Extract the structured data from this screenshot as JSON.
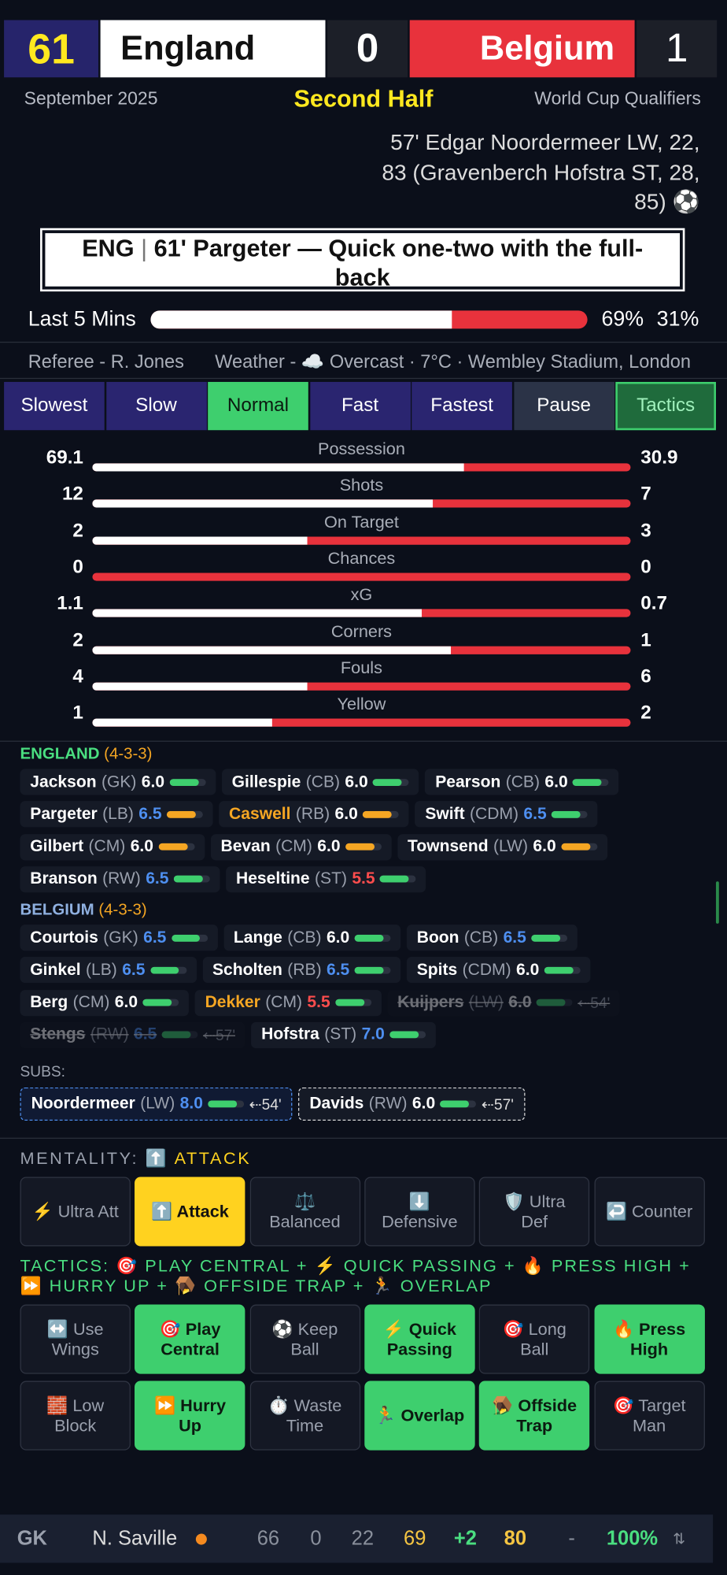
{
  "header": {
    "minute": "61",
    "home": "England",
    "home_score": "0",
    "away": "Belgium",
    "away_score": "1",
    "date": "September 2025",
    "phase": "Second Half",
    "competition": "World Cup Qualifiers"
  },
  "event": "57' Edgar Noordermeer LW, 22, 83 (Gravenberch Hofstra ST, 28, 85) ⚽",
  "commentary": {
    "team": "ENG",
    "text": "61' Pargeter — Quick one-two with the full-back"
  },
  "momentum": {
    "label": "Last 5 Mins",
    "home": 69,
    "away": 31,
    "home_label": "69%",
    "away_label": "31%"
  },
  "info": {
    "referee": "Referee - R. Jones",
    "weather": "Weather - ☁️ Overcast · 7°C · Wembley Stadium, London"
  },
  "speed": {
    "buttons": [
      "Slowest",
      "Slow",
      "Normal",
      "Fast",
      "Fastest",
      "Pause",
      "Tactics"
    ],
    "active": 2
  },
  "stats": [
    {
      "name": "Possession",
      "home": 69.1,
      "away": 30.9
    },
    {
      "name": "Shots",
      "home": 12,
      "away": 7
    },
    {
      "name": "On Target",
      "home": 2,
      "away": 3
    },
    {
      "name": "Chances",
      "home": 0,
      "away": 0
    },
    {
      "name": "xG",
      "home": 1.1,
      "away": 0.7
    },
    {
      "name": "Corners",
      "home": 2,
      "away": 1
    },
    {
      "name": "Fouls",
      "home": 4,
      "away": 6
    },
    {
      "name": "Yellow",
      "home": 1,
      "away": 2
    }
  ],
  "teams": [
    {
      "name": "ENGLAND",
      "formation": "(4-3-3)",
      "rows": [
        [
          {
            "name": "Jackson",
            "pos": "(GK)",
            "rating": "6.0"
          },
          {
            "name": "Gillespie",
            "pos": "(CB)",
            "rating": "6.0"
          },
          {
            "name": "Pearson",
            "pos": "(CB)",
            "rating": "6.0"
          }
        ],
        [
          {
            "name": "Pargeter",
            "pos": "(LB)",
            "rating": "6.5",
            "tired": true
          },
          {
            "name": "Caswell",
            "pos": "(RB)",
            "rating": "6.0",
            "booked": true,
            "tired": true
          },
          {
            "name": "Swift",
            "pos": "(CDM)",
            "rating": "6.5"
          }
        ],
        [
          {
            "name": "Gilbert",
            "pos": "(CM)",
            "rating": "6.0",
            "tired": true
          },
          {
            "name": "Bevan",
            "pos": "(CM)",
            "rating": "6.0",
            "tired": true
          },
          {
            "name": "Townsend",
            "pos": "(LW)",
            "rating": "6.0",
            "tired": true
          }
        ],
        [
          {
            "name": "Branson",
            "pos": "(RW)",
            "rating": "6.5"
          },
          {
            "name": "Heseltine",
            "pos": "(ST)",
            "rating": "5.5"
          }
        ]
      ]
    },
    {
      "name": "BELGIUM",
      "formation": "(4-3-3)",
      "rows": [
        [
          {
            "name": "Courtois",
            "pos": "(GK)",
            "rating": "6.5"
          },
          {
            "name": "Lange",
            "pos": "(CB)",
            "rating": "6.0"
          },
          {
            "name": "Boon",
            "pos": "(CB)",
            "rating": "6.5"
          }
        ],
        [
          {
            "name": "Ginkel",
            "pos": "(LB)",
            "rating": "6.5"
          },
          {
            "name": "Scholten",
            "pos": "(RB)",
            "rating": "6.5"
          },
          {
            "name": "Spits",
            "pos": "(CDM)",
            "rating": "6.0"
          }
        ],
        [
          {
            "name": "Berg",
            "pos": "(CM)",
            "rating": "6.0"
          },
          {
            "name": "Dekker",
            "pos": "(CM)",
            "rating": "5.5",
            "booked": true
          },
          {
            "name": "Kuijpers",
            "pos": "(LW)",
            "rating": "6.0",
            "off": "⇠54'"
          }
        ],
        [
          {
            "name": "Stengs",
            "pos": "(RW)",
            "rating": "6.5",
            "off": "⇠57'"
          },
          {
            "name": "Hofstra",
            "pos": "(ST)",
            "rating": "7.0"
          }
        ]
      ]
    }
  ],
  "subs": {
    "label": "SUBS:",
    "players": [
      {
        "name": "Noordermeer",
        "pos": "(LW)",
        "rating": "8.0",
        "on": "⇠54'"
      },
      {
        "name": "Davids",
        "pos": "(RW)",
        "rating": "6.0",
        "on": "⇠57'"
      }
    ]
  },
  "mentality": {
    "label": "MENTALITY:",
    "value": "⬆️ ATTACK",
    "buttons": [
      "⚡ Ultra Att",
      "⬆️ Attack",
      "⚖️ Balanced",
      "⬇️ Defensive",
      "🛡️ Ultra Def",
      "↩️ Counter"
    ],
    "active": 1
  },
  "tactics": {
    "label": "TACTICS:",
    "value": "🎯 PLAY CENTRAL + ⚡ QUICK PASSING + 🔥 PRESS HIGH + ⏩ HURRY UP + 🪤 OFFSIDE TRAP + 🏃 OVERLAP",
    "buttons": [
      {
        "label": "↔️ Use Wings",
        "on": false
      },
      {
        "label": "🎯 Play Central",
        "on": true
      },
      {
        "label": "⚽ Keep Ball",
        "on": false
      },
      {
        "label": "⚡ Quick Passing",
        "on": true
      },
      {
        "label": "🎯 Long Ball",
        "on": false
      },
      {
        "label": "🔥 Press High",
        "on": true
      },
      {
        "label": "🧱 Low Block",
        "on": false
      },
      {
        "label": "⏩ Hurry Up",
        "on": true
      },
      {
        "label": "⏱️ Waste Time",
        "on": false
      },
      {
        "label": "🏃 Overlap",
        "on": true
      },
      {
        "label": "🪤 Offside Trap",
        "on": true
      },
      {
        "label": "🎯 Target Man",
        "on": false
      }
    ]
  },
  "bottom_bar": {
    "position": "GK",
    "player": "N. Saville",
    "stats": [
      "66",
      "0",
      "22",
      "69",
      "+2",
      "80",
      "-",
      "100%",
      "⇅"
    ]
  }
}
